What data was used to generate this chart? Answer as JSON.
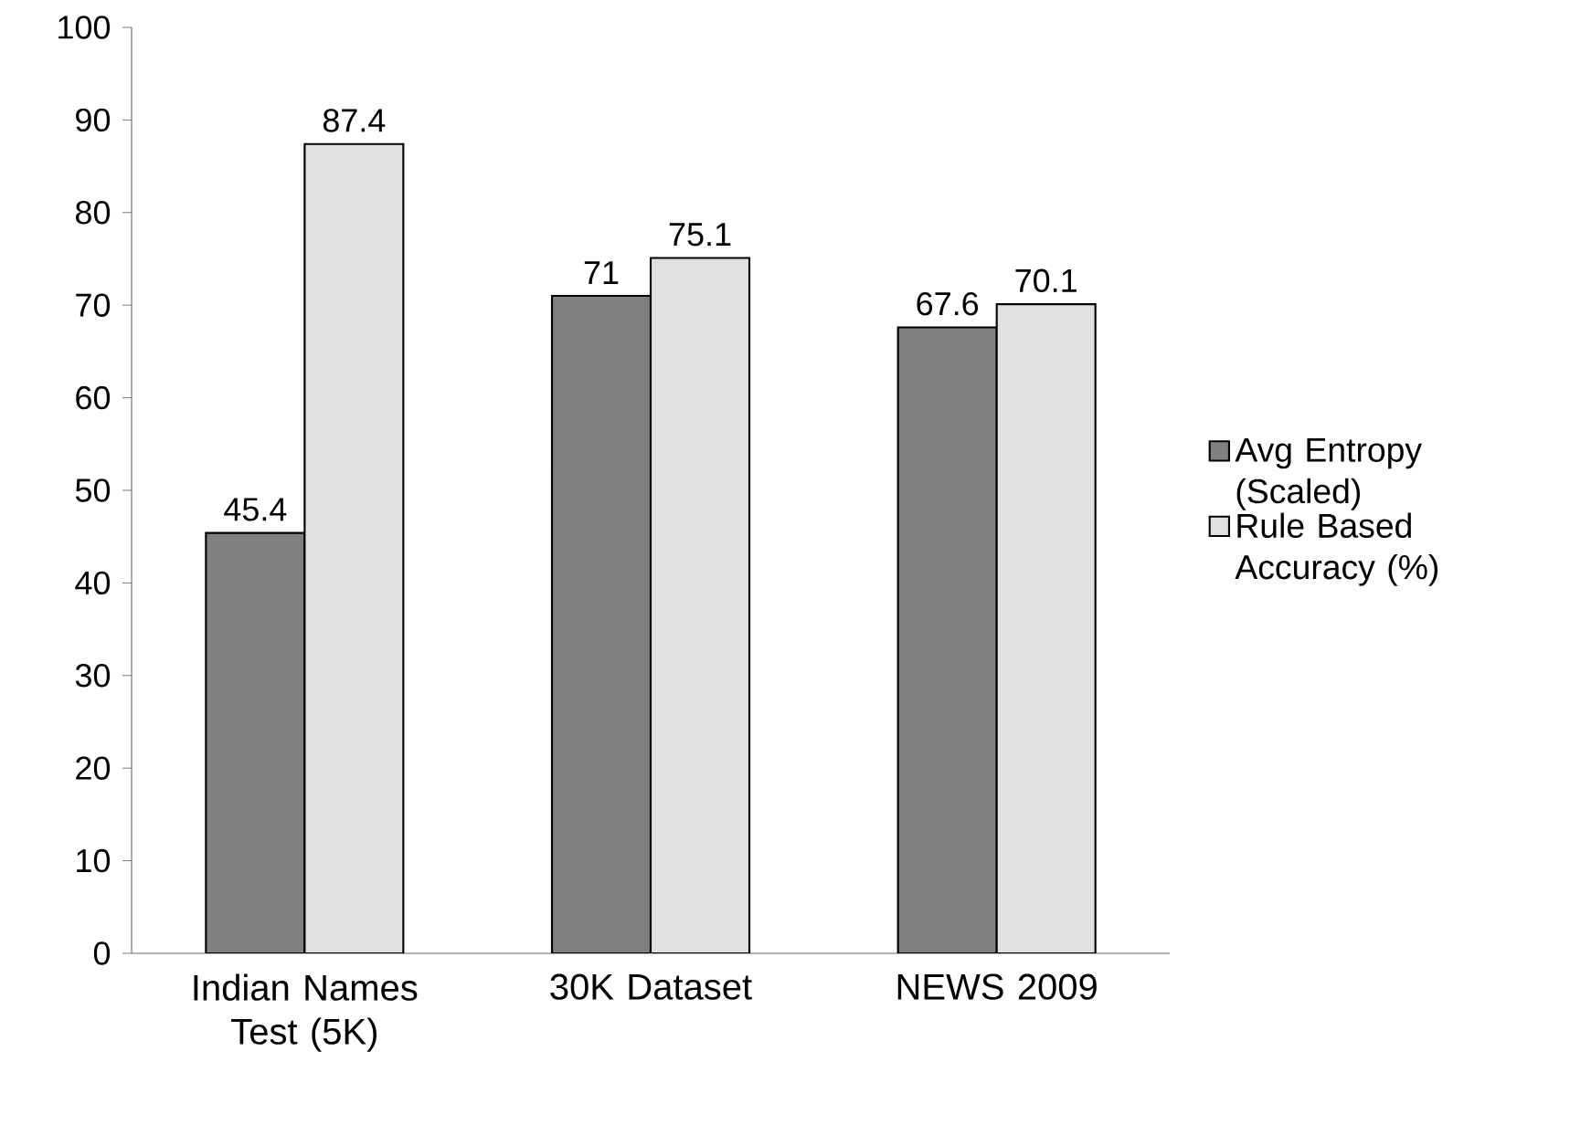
{
  "chart_data": {
    "type": "bar",
    "categories": [
      "Indian Names Test (5K)",
      "30K Dataset",
      "NEWS 2009"
    ],
    "series": [
      {
        "name": "Avg Entropy (Scaled)",
        "color": "#808080",
        "values": [
          45.4,
          71,
          67.6
        ]
      },
      {
        "name": "Rule Based Accuracy (%)",
        "color": "#e0e0e0",
        "values": [
          87.4,
          75.1,
          70.1
        ]
      }
    ],
    "ylim": [
      0,
      100
    ],
    "yticks": [
      0,
      10,
      20,
      30,
      40,
      50,
      60,
      70,
      80,
      90,
      100
    ],
    "data_labels": true,
    "grid": false,
    "legend": "right"
  }
}
